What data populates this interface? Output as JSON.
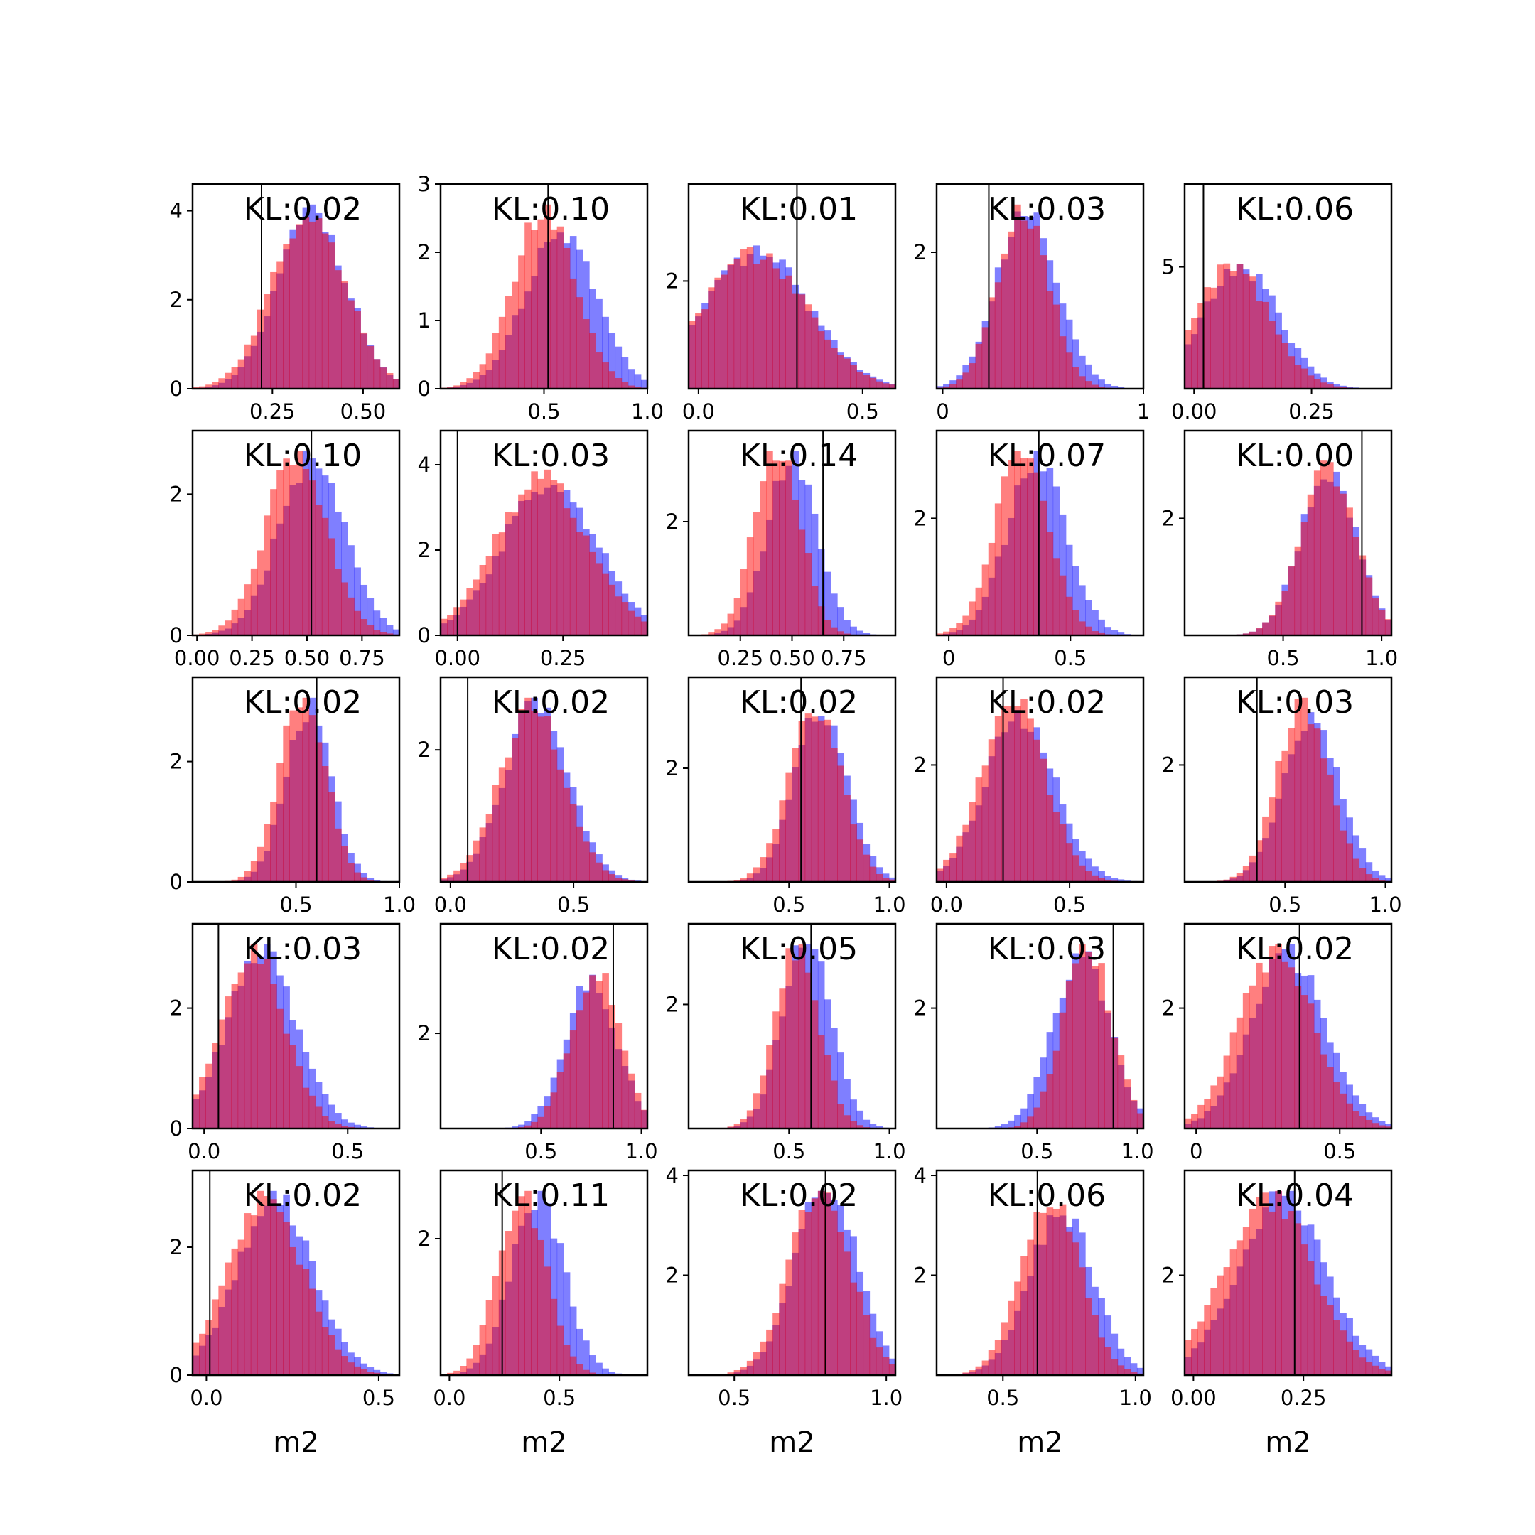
{
  "colors": {
    "series_a": "#0000ff",
    "series_b": "#ff0000",
    "overlap_hint": "#bf3a78",
    "vline": "#000000"
  },
  "chart_data": [
    {
      "type": "bar",
      "kl": "KL:0.02",
      "xlim": [
        0.03,
        0.6
      ],
      "ylim": [
        0,
        4.6
      ],
      "xticks": [
        0.25,
        0.5
      ],
      "xtick_labels": [
        "0.25",
        "0.50"
      ],
      "yticks": [
        0,
        2,
        4
      ],
      "ytick_labels": [
        "0",
        "2",
        "4"
      ],
      "vline": 0.22,
      "a": {
        "mu": 0.36,
        "sd": 0.095
      },
      "b": {
        "mu": 0.35,
        "sd": 0.1
      },
      "xlabel": ""
    },
    {
      "type": "bar",
      "kl": "KL:0.10",
      "xlim": [
        0.0,
        1.0
      ],
      "ylim": [
        0,
        3.0
      ],
      "xticks": [
        0.5,
        1.0
      ],
      "xtick_labels": [
        "0.5",
        "1.0"
      ],
      "yticks": [
        0,
        1,
        2,
        3
      ],
      "ytick_labels": [
        "0",
        "1",
        "2",
        "3"
      ],
      "vline": 0.52,
      "a": {
        "mu": 0.58,
        "sd": 0.17
      },
      "b": {
        "mu": 0.5,
        "sd": 0.15
      },
      "xlabel": ""
    },
    {
      "type": "bar",
      "kl": "KL:0.01",
      "xlim": [
        -0.03,
        0.6
      ],
      "ylim": [
        0,
        3.8
      ],
      "xticks": [
        0.0,
        0.5
      ],
      "xtick_labels": [
        "0.0",
        "0.5"
      ],
      "yticks": [
        2
      ],
      "ytick_labels": [
        "2"
      ],
      "vline": 0.3,
      "a": {
        "mu": 0.18,
        "sd": 0.16
      },
      "b": {
        "mu": 0.17,
        "sd": 0.16
      },
      "xlabel": ""
    },
    {
      "type": "bar",
      "kl": "KL:0.03",
      "xlim": [
        -0.03,
        1.0
      ],
      "ylim": [
        0,
        3.0
      ],
      "xticks": [
        0.0,
        1.0
      ],
      "xtick_labels": [
        "0",
        "1"
      ],
      "yticks": [
        2
      ],
      "ytick_labels": [
        "2"
      ],
      "vline": 0.23,
      "a": {
        "mu": 0.42,
        "sd": 0.15
      },
      "b": {
        "mu": 0.4,
        "sd": 0.13
      },
      "xlabel": ""
    },
    {
      "type": "bar",
      "kl": "KL:0.06",
      "xlim": [
        -0.02,
        0.42
      ],
      "ylim": [
        0,
        8.4
      ],
      "xticks": [
        0.0,
        0.25
      ],
      "xtick_labels": [
        "0.00",
        "0.25"
      ],
      "yticks": [
        5
      ],
      "ytick_labels": [
        "5"
      ],
      "vline": 0.02,
      "a": {
        "mu": 0.1,
        "sd": 0.08
      },
      "b": {
        "mu": 0.08,
        "sd": 0.08
      },
      "xlabel": ""
    },
    {
      "type": "bar",
      "kl": "KL:0.10",
      "xlim": [
        -0.02,
        0.92
      ],
      "ylim": [
        0,
        2.9
      ],
      "xticks": [
        0.0,
        0.25,
        0.5,
        0.75
      ],
      "xtick_labels": [
        "0.00",
        "0.25",
        "0.50",
        "0.75"
      ],
      "yticks": [
        0,
        2
      ],
      "ytick_labels": [
        "0",
        "2"
      ],
      "vline": 0.52,
      "a": {
        "mu": 0.52,
        "sd": 0.15
      },
      "b": {
        "mu": 0.45,
        "sd": 0.14
      },
      "xlabel": ""
    },
    {
      "type": "bar",
      "kl": "KL:0.03",
      "xlim": [
        -0.04,
        0.45
      ],
      "ylim": [
        0,
        4.8
      ],
      "xticks": [
        0.0,
        0.25
      ],
      "xtick_labels": [
        "0.00",
        "0.25"
      ],
      "yticks": [
        0,
        2,
        4
      ],
      "ytick_labels": [
        "0",
        "2",
        "4"
      ],
      "vline": 0.0,
      "a": {
        "mu": 0.22,
        "sd": 0.11
      },
      "b": {
        "mu": 0.2,
        "sd": 0.11
      },
      "xlabel": ""
    },
    {
      "type": "bar",
      "kl": "KL:0.14",
      "xlim": [
        0.0,
        1.0
      ],
      "ylim": [
        0,
        3.6
      ],
      "xticks": [
        0.25,
        0.5,
        0.75
      ],
      "xtick_labels": [
        "0.25",
        "0.50",
        "0.75"
      ],
      "yticks": [
        2
      ],
      "ytick_labels": [
        "2"
      ],
      "vline": 0.65,
      "a": {
        "mu": 0.5,
        "sd": 0.12
      },
      "b": {
        "mu": 0.43,
        "sd": 0.11
      },
      "xlabel": ""
    },
    {
      "type": "bar",
      "kl": "KL:0.07",
      "xlim": [
        -0.05,
        0.8
      ],
      "ylim": [
        0,
        3.5
      ],
      "xticks": [
        0.0,
        0.5
      ],
      "xtick_labels": [
        "0",
        "0.5"
      ],
      "yticks": [
        2
      ],
      "ytick_labels": [
        "2"
      ],
      "vline": 0.37,
      "a": {
        "mu": 0.36,
        "sd": 0.12
      },
      "b": {
        "mu": 0.3,
        "sd": 0.11
      },
      "xlabel": ""
    },
    {
      "type": "bar",
      "kl": "KL:0.00",
      "xlim": [
        0.0,
        1.05
      ],
      "ylim": [
        0,
        3.5
      ],
      "xticks": [
        0.5,
        1.0
      ],
      "xtick_labels": [
        "0.5",
        "1.0"
      ],
      "yticks": [
        2
      ],
      "ytick_labels": [
        "2"
      ],
      "vline": 0.9,
      "a": {
        "mu": 0.73,
        "sd": 0.14
      },
      "b": {
        "mu": 0.73,
        "sd": 0.14
      },
      "xlabel": ""
    },
    {
      "type": "bar",
      "kl": "KL:0.02",
      "xlim": [
        0.0,
        1.0
      ],
      "ylim": [
        0,
        3.4
      ],
      "xticks": [
        0.5,
        1.0
      ],
      "xtick_labels": [
        "0.5",
        "1.0"
      ],
      "yticks": [
        0,
        2
      ],
      "ytick_labels": [
        "0",
        "2"
      ],
      "vline": 0.6,
      "a": {
        "mu": 0.56,
        "sd": 0.11
      },
      "b": {
        "mu": 0.53,
        "sd": 0.11
      },
      "xlabel": ""
    },
    {
      "type": "bar",
      "kl": "KL:0.02",
      "xlim": [
        -0.04,
        0.8
      ],
      "ylim": [
        0,
        3.1
      ],
      "xticks": [
        0.0,
        0.5
      ],
      "xtick_labels": [
        "0.0",
        "0.5"
      ],
      "yticks": [
        2
      ],
      "ytick_labels": [
        "2"
      ],
      "vline": 0.07,
      "a": {
        "mu": 0.35,
        "sd": 0.13
      },
      "b": {
        "mu": 0.33,
        "sd": 0.13
      },
      "xlabel": ""
    },
    {
      "type": "bar",
      "kl": "KL:0.02",
      "xlim": [
        0.0,
        1.03
      ],
      "ylim": [
        0,
        3.6
      ],
      "xticks": [
        0.5,
        1.0
      ],
      "xtick_labels": [
        "0.5",
        "1.0"
      ],
      "yticks": [
        2
      ],
      "ytick_labels": [
        "2"
      ],
      "vline": 0.56,
      "a": {
        "mu": 0.66,
        "sd": 0.13
      },
      "b": {
        "mu": 0.63,
        "sd": 0.13
      },
      "xlabel": ""
    },
    {
      "type": "bar",
      "kl": "KL:0.02",
      "xlim": [
        -0.04,
        0.8
      ],
      "ylim": [
        0,
        3.5
      ],
      "xticks": [
        0.0,
        0.5
      ],
      "xtick_labels": [
        "0.0",
        "0.5"
      ],
      "yticks": [
        2
      ],
      "ytick_labels": [
        "2"
      ],
      "vline": 0.23,
      "a": {
        "mu": 0.3,
        "sd": 0.14
      },
      "b": {
        "mu": 0.27,
        "sd": 0.13
      },
      "xlabel": ""
    },
    {
      "type": "bar",
      "kl": "KL:0.03",
      "xlim": [
        0.0,
        1.03
      ],
      "ylim": [
        0,
        3.5
      ],
      "xticks": [
        0.5,
        1.0
      ],
      "xtick_labels": [
        "0.5",
        "1.0"
      ],
      "yticks": [
        2
      ],
      "ytick_labels": [
        "2"
      ],
      "vline": 0.36,
      "a": {
        "mu": 0.63,
        "sd": 0.14
      },
      "b": {
        "mu": 0.59,
        "sd": 0.13
      },
      "xlabel": ""
    },
    {
      "type": "bar",
      "kl": "KL:0.03",
      "xlim": [
        -0.04,
        0.68
      ],
      "ylim": [
        0,
        3.4
      ],
      "xticks": [
        0.0,
        0.5
      ],
      "xtick_labels": [
        "0.0",
        "0.5"
      ],
      "yticks": [
        0,
        2
      ],
      "ytick_labels": [
        "0",
        "2"
      ],
      "vline": 0.05,
      "a": {
        "mu": 0.2,
        "sd": 0.12
      },
      "b": {
        "mu": 0.17,
        "sd": 0.11
      },
      "xlabel": ""
    },
    {
      "type": "bar",
      "kl": "KL:0.02",
      "xlim": [
        0.0,
        1.03
      ],
      "ylim": [
        0,
        4.3
      ],
      "xticks": [
        0.5,
        1.0
      ],
      "xtick_labels": [
        "0.5",
        "1.0"
      ],
      "yticks": [
        2
      ],
      "ytick_labels": [
        "2"
      ],
      "vline": 0.86,
      "a": {
        "mu": 0.75,
        "sd": 0.13
      },
      "b": {
        "mu": 0.77,
        "sd": 0.12
      },
      "xlabel": ""
    },
    {
      "type": "bar",
      "kl": "KL:0.05",
      "xlim": [
        0.0,
        1.03
      ],
      "ylim": [
        0,
        3.3
      ],
      "xticks": [
        0.5,
        1.0
      ],
      "xtick_labels": [
        "0.5",
        "1.0"
      ],
      "yticks": [
        2
      ],
      "ytick_labels": [
        "2"
      ],
      "vline": 0.61,
      "a": {
        "mu": 0.59,
        "sd": 0.12
      },
      "b": {
        "mu": 0.54,
        "sd": 0.11
      },
      "xlabel": ""
    },
    {
      "type": "bar",
      "kl": "KL:0.03",
      "xlim": [
        0.0,
        1.03
      ],
      "ylim": [
        0,
        3.4
      ],
      "xticks": [
        0.5,
        1.0
      ],
      "xtick_labels": [
        "0.5",
        "1.0"
      ],
      "yticks": [
        2
      ],
      "ytick_labels": [
        "2"
      ],
      "vline": 0.88,
      "a": {
        "mu": 0.72,
        "sd": 0.14
      },
      "b": {
        "mu": 0.75,
        "sd": 0.12
      },
      "xlabel": ""
    },
    {
      "type": "bar",
      "kl": "KL:0.02",
      "xlim": [
        -0.04,
        0.68
      ],
      "ylim": [
        0,
        3.4
      ],
      "xticks": [
        0.0,
        0.5
      ],
      "xtick_labels": [
        "0",
        "0.5"
      ],
      "yticks": [
        2
      ],
      "ytick_labels": [
        "2"
      ],
      "vline": 0.36,
      "a": {
        "mu": 0.32,
        "sd": 0.13
      },
      "b": {
        "mu": 0.28,
        "sd": 0.13
      },
      "xlabel": ""
    },
    {
      "type": "bar",
      "kl": "KL:0.02",
      "xlim": [
        -0.04,
        0.56
      ],
      "ylim": [
        0,
        3.2
      ],
      "xticks": [
        0.0,
        0.5
      ],
      "xtick_labels": [
        "0.0",
        "0.5"
      ],
      "yticks": [
        0,
        2
      ],
      "ytick_labels": [
        "0",
        "2"
      ],
      "vline": 0.01,
      "a": {
        "mu": 0.2,
        "sd": 0.11
      },
      "b": {
        "mu": 0.17,
        "sd": 0.11
      },
      "xlabel": "m2"
    },
    {
      "type": "bar",
      "kl": "KL:0.11",
      "xlim": [
        -0.04,
        0.9
      ],
      "ylim": [
        0,
        3.0
      ],
      "xticks": [
        0.0,
        0.5
      ],
      "xtick_labels": [
        "0.0",
        "0.5"
      ],
      "yticks": [
        2
      ],
      "ytick_labels": [
        "2"
      ],
      "vline": 0.24,
      "a": {
        "mu": 0.4,
        "sd": 0.12
      },
      "b": {
        "mu": 0.33,
        "sd": 0.11
      },
      "xlabel": "m2"
    },
    {
      "type": "bar",
      "kl": "KL:0.02",
      "xlim": [
        0.35,
        1.03
      ],
      "ylim": [
        0,
        4.1
      ],
      "xticks": [
        0.5,
        1.0
      ],
      "xtick_labels": [
        "0.5",
        "1.0"
      ],
      "yticks": [
        2,
        4
      ],
      "ytick_labels": [
        "2",
        "4"
      ],
      "vline": 0.8,
      "a": {
        "mu": 0.8,
        "sd": 0.1
      },
      "b": {
        "mu": 0.78,
        "sd": 0.1
      },
      "xlabel": "m2"
    },
    {
      "type": "bar",
      "kl": "KL:0.06",
      "xlim": [
        0.25,
        1.03
      ],
      "ylim": [
        0,
        4.1
      ],
      "xticks": [
        0.5,
        1.0
      ],
      "xtick_labels": [
        "0.5",
        "1.0"
      ],
      "yticks": [
        2,
        4
      ],
      "ytick_labels": [
        "2",
        "4"
      ],
      "vline": 0.63,
      "a": {
        "mu": 0.72,
        "sd": 0.12
      },
      "b": {
        "mu": 0.68,
        "sd": 0.11
      },
      "xlabel": "m2"
    },
    {
      "type": "bar",
      "kl": "KL:0.04",
      "xlim": [
        -0.02,
        0.45
      ],
      "ylim": [
        0,
        4.1
      ],
      "xticks": [
        0.0,
        0.25
      ],
      "xtick_labels": [
        "0.00",
        "0.25"
      ],
      "yticks": [
        2
      ],
      "ytick_labels": [
        "2"
      ],
      "vline": 0.23,
      "a": {
        "mu": 0.2,
        "sd": 0.1
      },
      "b": {
        "mu": 0.17,
        "sd": 0.1
      },
      "xlabel": "m2"
    }
  ]
}
